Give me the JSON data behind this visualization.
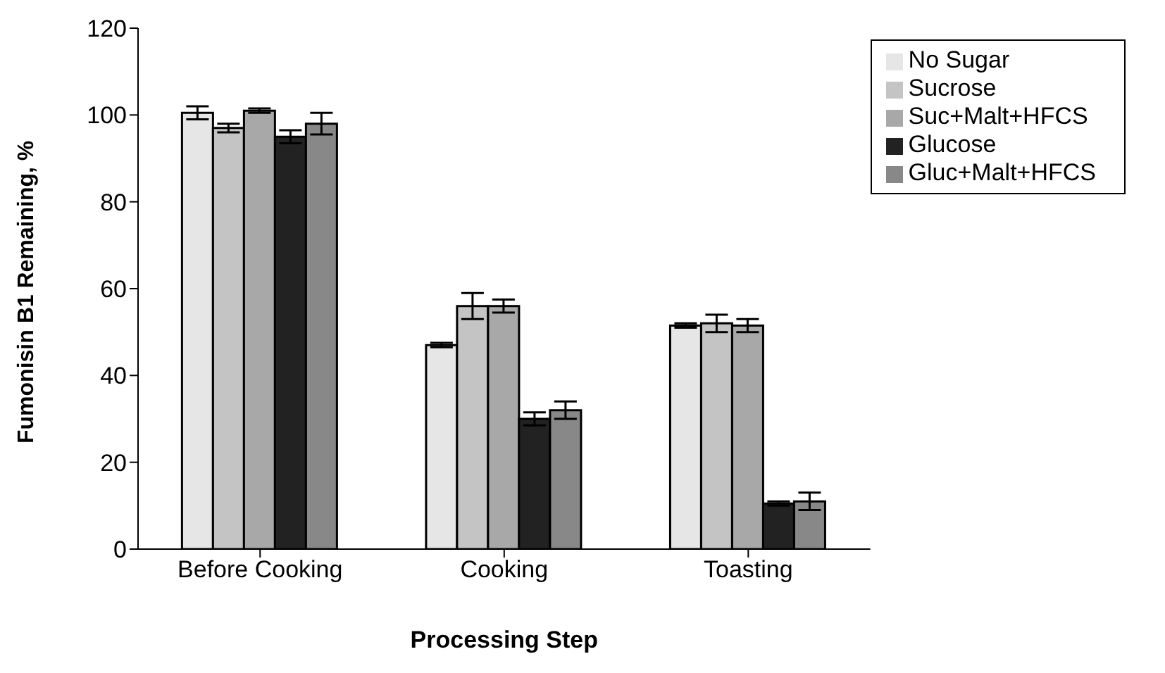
{
  "chart_data": {
    "type": "bar",
    "xlabel": "Processing Step",
    "ylabel": "Fumonisin B1 Remaining, %",
    "categories": [
      "Before Cooking",
      "Cooking",
      "Toasting"
    ],
    "series": [
      {
        "name": "No Sugar",
        "color": "#e6e6e6",
        "values": [
          100.5,
          47,
          51.5
        ],
        "errors": [
          1.5,
          0.5,
          0.5
        ]
      },
      {
        "name": "Sucrose",
        "color": "#c4c4c4",
        "values": [
          97,
          56,
          52
        ],
        "errors": [
          1,
          3,
          2
        ]
      },
      {
        "name": "Suc+Malt+HFCS",
        "color": "#a8a8a8",
        "values": [
          101,
          56,
          51.5
        ],
        "errors": [
          0.5,
          1.5,
          1.5
        ]
      },
      {
        "name": "Glucose",
        "color": "#222222",
        "values": [
          95,
          30,
          10.5
        ],
        "errors": [
          1.5,
          1.5,
          0.5
        ]
      },
      {
        "name": "Gluc+Malt+HFCS",
        "color": "#888888",
        "values": [
          98,
          32,
          11
        ],
        "errors": [
          2.5,
          2,
          2
        ]
      }
    ],
    "ylim": [
      0,
      120
    ],
    "yticks": [
      0,
      20,
      40,
      60,
      80,
      100,
      120
    ],
    "grid": false,
    "legend": "top right"
  }
}
